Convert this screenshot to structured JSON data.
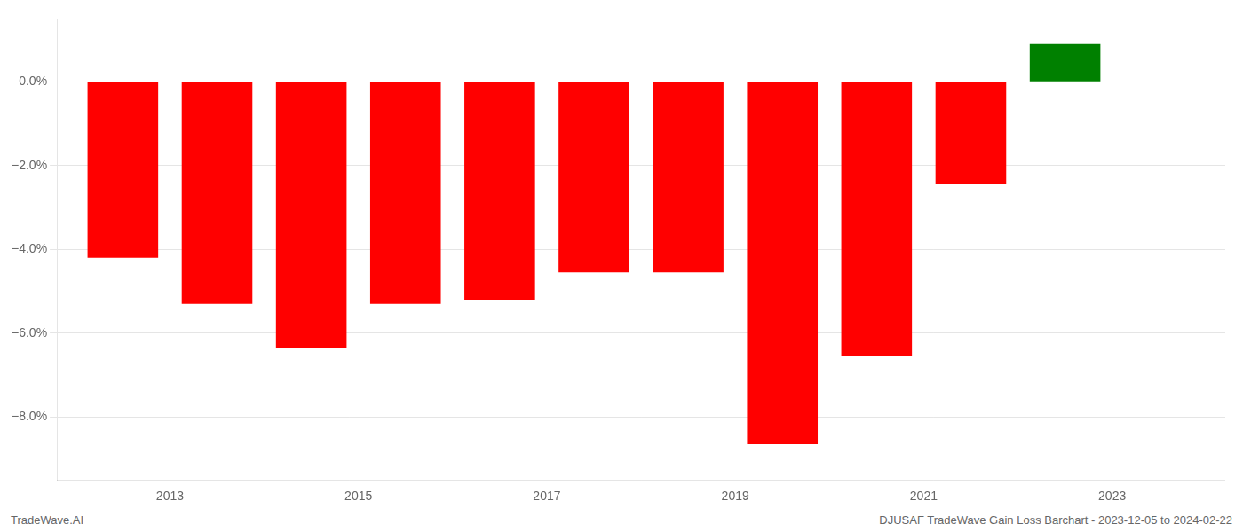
{
  "chart_data": {
    "type": "bar",
    "x": [
      2012.5,
      2013.5,
      2014.5,
      2015.5,
      2016.5,
      2017.5,
      2018.5,
      2019.5,
      2020.5,
      2021.5,
      2022.5
    ],
    "values": [
      -4.2,
      -5.3,
      -6.35,
      -5.3,
      -5.2,
      -4.55,
      -4.55,
      -8.65,
      -6.55,
      -2.45,
      0.9
    ],
    "colors": [
      "#ff0000",
      "#ff0000",
      "#ff0000",
      "#ff0000",
      "#ff0000",
      "#ff0000",
      "#ff0000",
      "#ff0000",
      "#ff0000",
      "#ff0000",
      "#008000"
    ],
    "xlim": [
      2011.8,
      2024.2
    ],
    "xticks": [
      2013,
      2015,
      2017,
      2019,
      2021,
      2023
    ],
    "ylim": [
      -9.5,
      1.5
    ],
    "yticks": [
      {
        "value": 0.0,
        "label": "0.0%"
      },
      {
        "value": -2.0,
        "label": "−2.0%"
      },
      {
        "value": -4.0,
        "label": "−4.0%"
      },
      {
        "value": -6.0,
        "label": "−6.0%"
      },
      {
        "value": -8.0,
        "label": "−8.0%"
      }
    ],
    "grid": true,
    "annotations": [
      "TradeWave.AI",
      "DJUSAF TradeWave Gain Loss Barchart - 2023-12-05 to 2024-02-22"
    ]
  }
}
